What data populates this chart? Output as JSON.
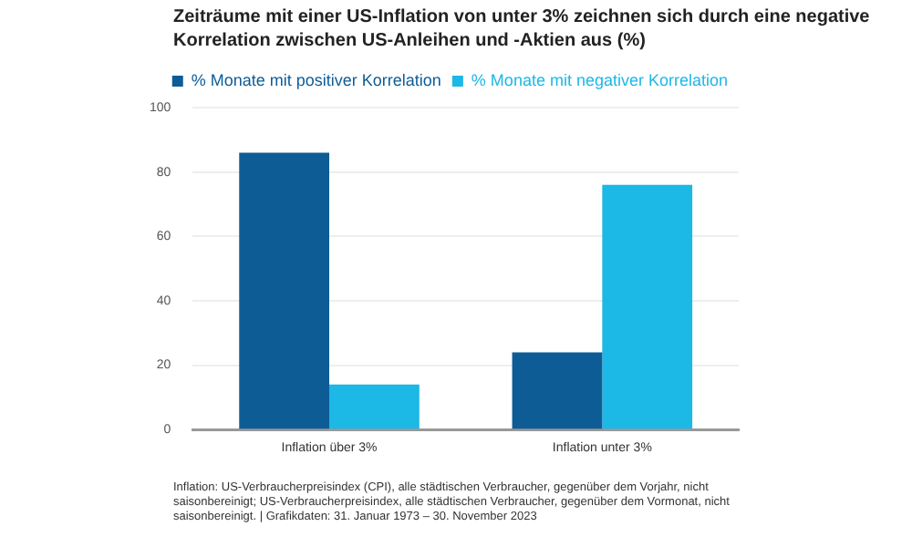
{
  "chart_data": {
    "type": "bar",
    "title": "Zeiträume mit einer US-Inflation von unter 3% zeichnen sich durch eine negative Korrelation zwischen US-Anleihen und -Aktien aus (%)",
    "categories": [
      "Inflation über 3%",
      "Inflation unter 3%"
    ],
    "series": [
      {
        "name": "% Monate mit positiver Korrelation",
        "color": "#0e5c96",
        "values": [
          86,
          24
        ]
      },
      {
        "name": "% Monate mit negativer Korrelation",
        "color": "#1cb8e6",
        "values": [
          14,
          76
        ]
      }
    ],
    "ylim": [
      0,
      100
    ],
    "yticks": [
      0,
      20,
      40,
      60,
      80,
      100
    ],
    "grid": "y",
    "legend": "top right",
    "annotations": [
      "Inflation: US-Verbraucherpreisindex (CPI), alle städtischen Verbraucher, gegenüber dem Vorjahr, nicht saisonbereinigt; US-Verbraucherpreisindex, alle städtischen Verbraucher, gegenüber dem Vormonat, nicht saisonbereinigt. | Grafikdaten: 31. Januar 1973 – 30. November 2023"
    ]
  }
}
